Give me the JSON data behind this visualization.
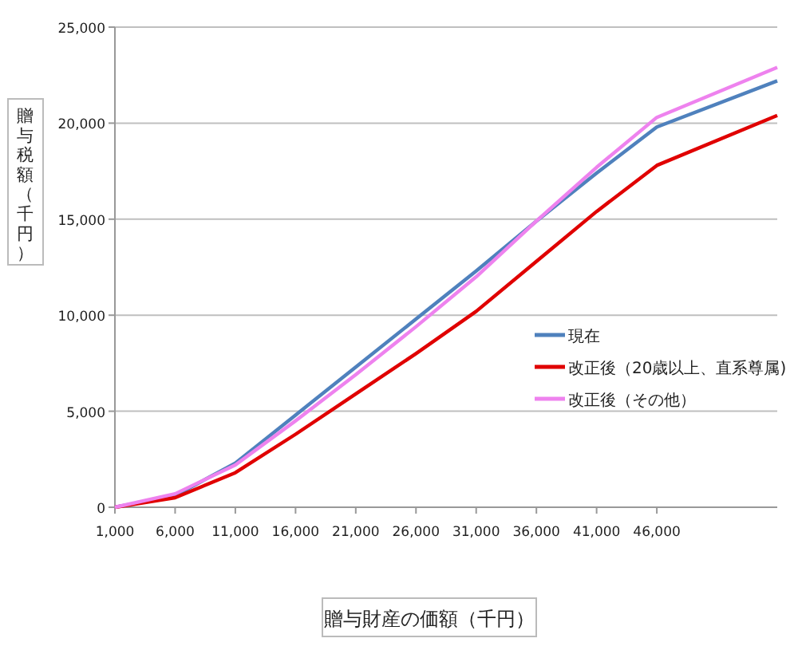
{
  "chart_data": {
    "type": "line",
    "xlabel": "贈与財産の価額（千円）",
    "ylabel": "贈与税額（千円）",
    "x": [
      1000,
      6000,
      11000,
      16000,
      21000,
      26000,
      31000,
      36000,
      41000,
      46000,
      56000
    ],
    "series": [
      {
        "name": "現在",
        "color": "#4f81bd",
        "values": [
          0,
          600,
          2300,
          4800,
          7300,
          9800,
          12300,
          14900,
          17400,
          19800,
          22200
        ]
      },
      {
        "name": "改正後（20歳以上、直系尊属)",
        "color": "#e00000",
        "values": [
          0,
          500,
          1800,
          3800,
          5900,
          8000,
          10200,
          12800,
          15400,
          17800,
          20400
        ]
      },
      {
        "name": "改正後（その他）",
        "color": "#ee82ee",
        "values": [
          0,
          700,
          2200,
          4500,
          6900,
          9400,
          12000,
          14900,
          17700,
          20300,
          22900
        ]
      }
    ],
    "xlim": [
      1000,
      56000
    ],
    "xticks": [
      {
        "value": 1000,
        "label": "1,000"
      },
      {
        "value": 6000,
        "label": "6,000"
      },
      {
        "value": 11000,
        "label": "11,000"
      },
      {
        "value": 16000,
        "label": "16,000"
      },
      {
        "value": 21000,
        "label": "21,000"
      },
      {
        "value": 26000,
        "label": "26,000"
      },
      {
        "value": 31000,
        "label": "31,000"
      },
      {
        "value": 36000,
        "label": "36,000"
      },
      {
        "value": 41000,
        "label": "41,000"
      },
      {
        "value": 46000,
        "label": "46,000"
      }
    ],
    "ylim": [
      0,
      25000
    ],
    "yticks": [
      {
        "value": 0,
        "label": "0"
      },
      {
        "value": 5000,
        "label": "5,000"
      },
      {
        "value": 10000,
        "label": "10,000"
      },
      {
        "value": 15000,
        "label": "15,000"
      },
      {
        "value": 20000,
        "label": "20,000"
      },
      {
        "value": 25000,
        "label": "25,000"
      }
    ],
    "grid": "y",
    "legend": "right",
    "line_style": "solid",
    "marker": "none"
  }
}
